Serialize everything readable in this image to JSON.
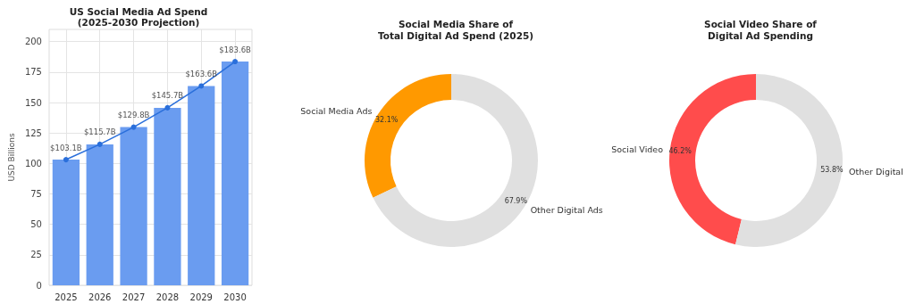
{
  "chart_data": [
    {
      "type": "bar",
      "title": "US Social Media Ad Spend\n(2025-2030 Projection)",
      "ylabel": "USD Billions",
      "categories": [
        "2025",
        "2026",
        "2027",
        "2028",
        "2029",
        "2030"
      ],
      "series": [
        {
          "type": "bar",
          "color": "#6a9cf0",
          "values": [
            103.1,
            115.7,
            129.8,
            145.7,
            163.6,
            183.6
          ]
        },
        {
          "type": "line",
          "color": "#2a6fdb",
          "values": [
            103.1,
            115.7,
            129.8,
            145.7,
            163.6,
            183.6
          ],
          "value_labels": [
            "$103.1B",
            "$115.7B",
            "$129.8B",
            "$145.7B",
            "$163.6B",
            "$183.6B"
          ]
        }
      ],
      "ylim": [
        0,
        210
      ],
      "yticks": [
        0,
        25,
        50,
        75,
        100,
        125,
        150,
        175,
        200
      ],
      "grid": true,
      "marker": "circle",
      "line_style": "solid",
      "legend": false
    },
    {
      "type": "donut",
      "title": "Social Media Share of\nTotal Digital Ad Spend (2025)",
      "categories": [
        "Social Media Ads",
        "Other Digital Ads"
      ],
      "values": [
        32.1,
        67.9
      ],
      "colors": [
        "#ff9900",
        "#e0e0e0"
      ],
      "value_labels": [
        "32.1%",
        "67.9%"
      ],
      "legend": false
    },
    {
      "type": "donut",
      "title": "Social Video Share of\nDigital Ad Spending",
      "categories": [
        "Social Video",
        "Other Digital"
      ],
      "values": [
        46.2,
        53.8
      ],
      "colors": [
        "#ff4c4c",
        "#e0e0e0"
      ],
      "value_labels": [
        "46.2%",
        "53.8%"
      ],
      "legend": false
    }
  ]
}
